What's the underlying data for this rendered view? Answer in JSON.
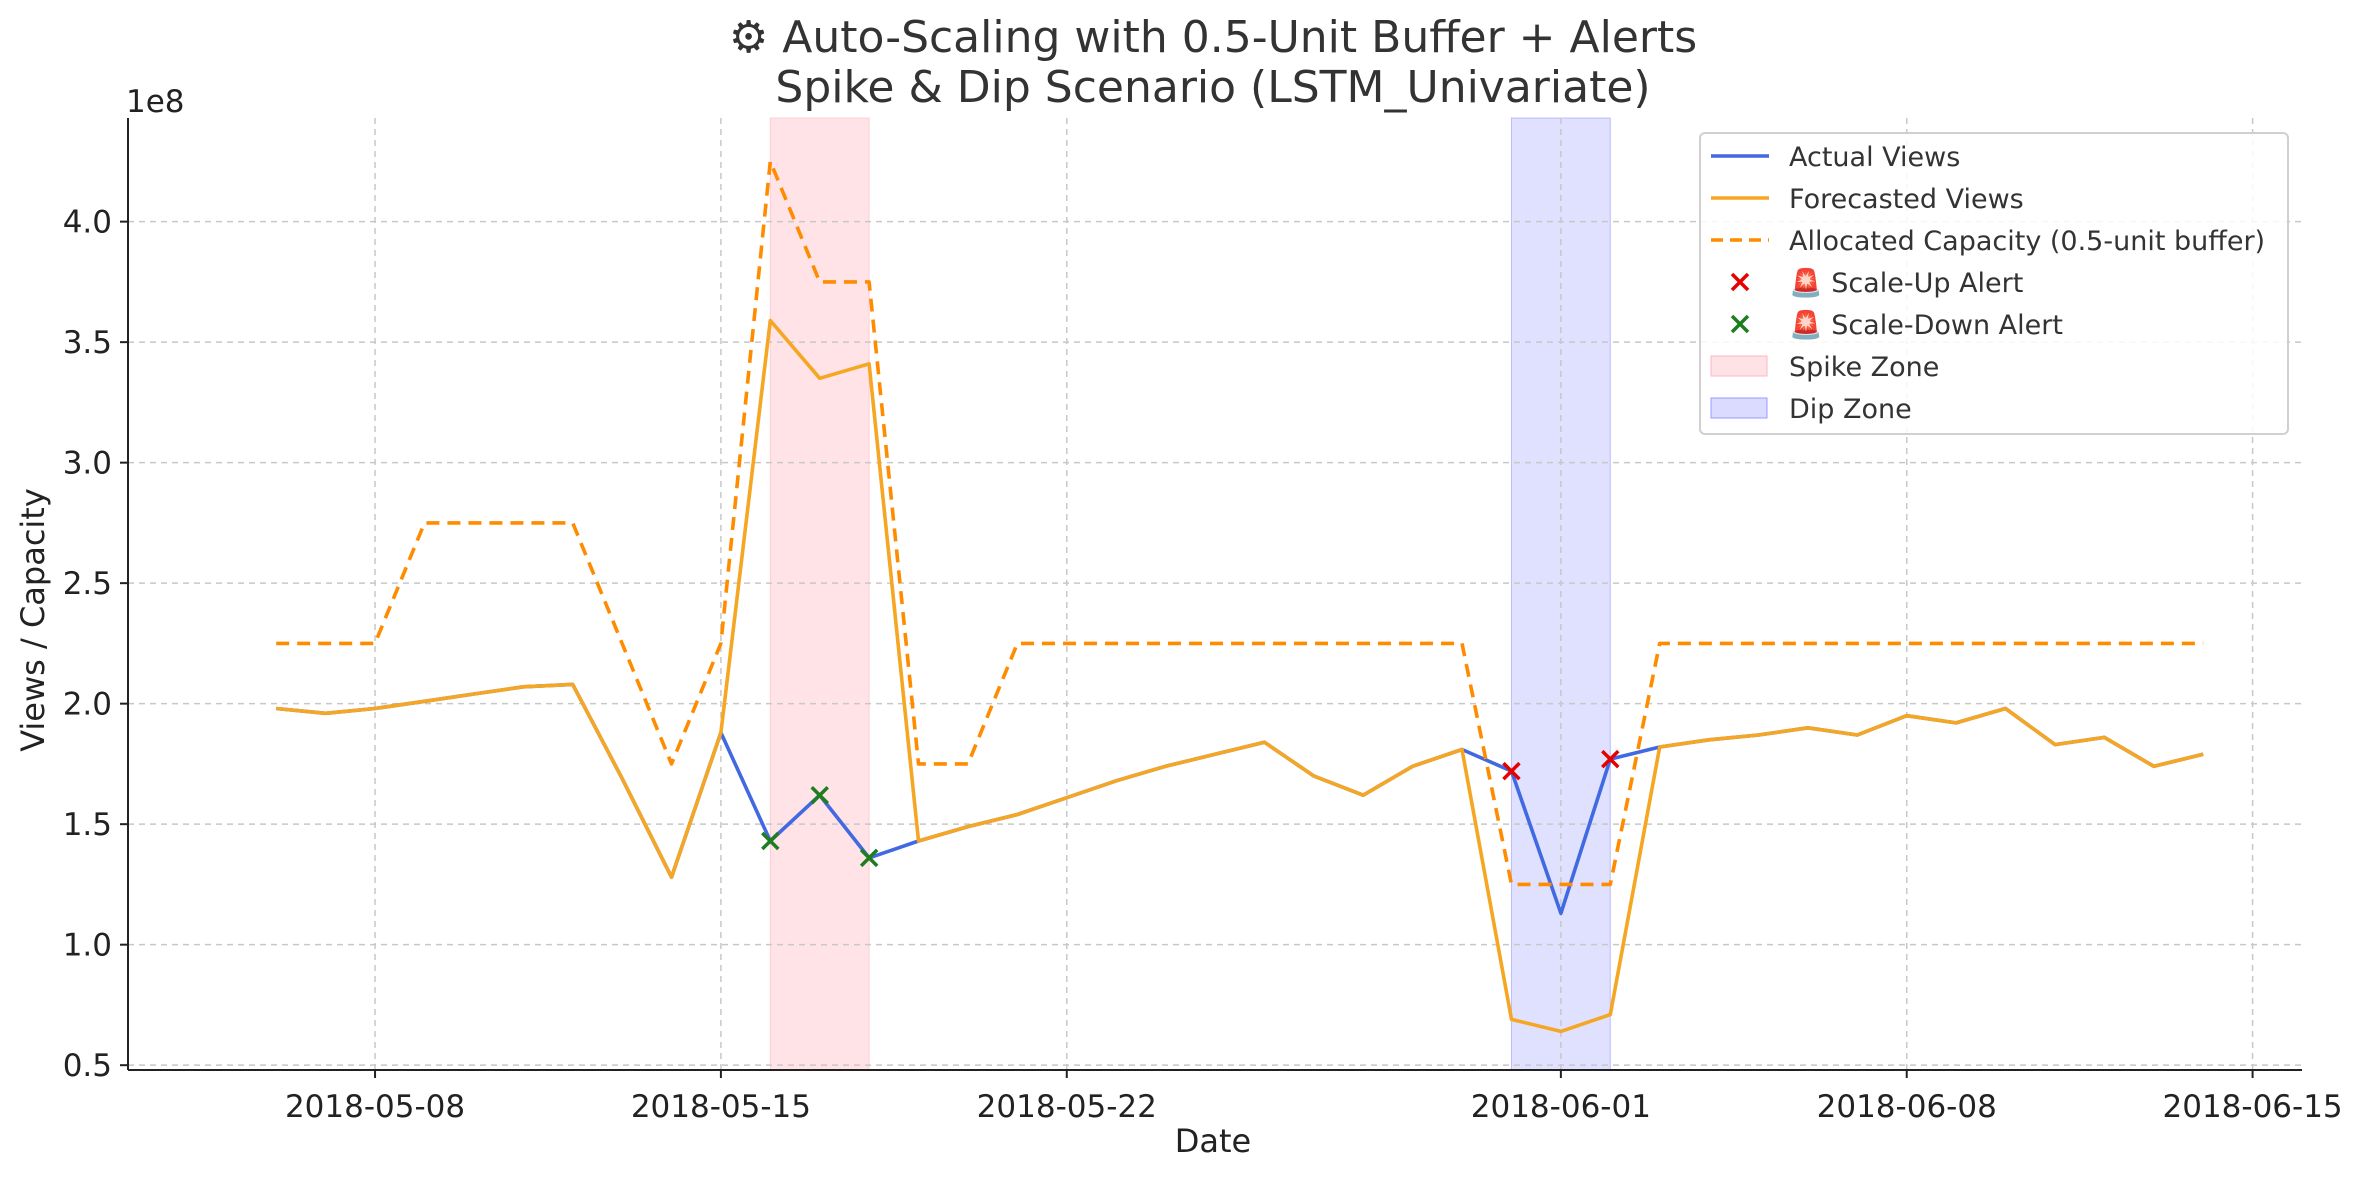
{
  "chart_data": {
    "type": "line",
    "title_line1": "⚙ Auto-Scaling with 0.5-Unit Buffer + Alerts",
    "title_line2": "Spike & Dip Scenario (LSTM_Univariate)",
    "xlabel": "Date",
    "ylabel": "Views / Capacity",
    "y_multiplier": "1e8",
    "xlim": [
      "2018-05-03",
      "2018-06-16"
    ],
    "ylim": [
      0.48,
      4.43
    ],
    "x_ticks": [
      "2018-05-08",
      "2018-05-15",
      "2018-05-22",
      "2018-06-01",
      "2018-06-08",
      "2018-06-15"
    ],
    "y_ticks": [
      "0.5",
      "1.0",
      "1.5",
      "2.0",
      "2.5",
      "3.0",
      "3.5",
      "4.0"
    ],
    "grid": true,
    "legend_position": "top-right",
    "colors": {
      "actual": "#4169e1",
      "forecast": "#f5a623",
      "capacity": "#ff8c00",
      "scale_up": "#e60000",
      "scale_down": "#1e7d1e",
      "spike_zone": "#ffb6c1",
      "dip_zone": "#9999ff"
    },
    "dates": [
      "2018-05-06",
      "2018-05-07",
      "2018-05-08",
      "2018-05-09",
      "2018-05-10",
      "2018-05-11",
      "2018-05-12",
      "2018-05-13",
      "2018-05-14",
      "2018-05-15",
      "2018-05-16",
      "2018-05-17",
      "2018-05-18",
      "2018-05-19",
      "2018-05-20",
      "2018-05-21",
      "2018-05-22",
      "2018-05-23",
      "2018-05-24",
      "2018-05-25",
      "2018-05-26",
      "2018-05-27",
      "2018-05-28",
      "2018-05-29",
      "2018-05-30",
      "2018-05-31",
      "2018-06-01",
      "2018-06-02",
      "2018-06-03",
      "2018-06-04",
      "2018-06-05",
      "2018-06-06",
      "2018-06-07",
      "2018-06-08",
      "2018-06-09",
      "2018-06-10",
      "2018-06-11",
      "2018-06-12",
      "2018-06-13",
      "2018-06-14"
    ],
    "series": [
      {
        "key": "actual",
        "name": "Actual Views",
        "style": "solid",
        "values": [
          1.98,
          1.96,
          1.98,
          2.01,
          2.04,
          2.07,
          2.08,
          1.69,
          1.28,
          1.88,
          1.43,
          1.62,
          1.36,
          1.43,
          1.49,
          1.54,
          1.61,
          1.68,
          1.74,
          1.79,
          1.84,
          1.7,
          1.62,
          1.74,
          1.81,
          1.72,
          1.13,
          1.77,
          1.82,
          1.85,
          1.87,
          1.9,
          1.87,
          1.95,
          1.92,
          1.98,
          1.83,
          1.86,
          1.74,
          1.79
        ]
      },
      {
        "key": "forecast",
        "name": "Forecasted Views",
        "style": "solid",
        "values": [
          1.98,
          1.96,
          1.98,
          2.01,
          2.04,
          2.07,
          2.08,
          1.69,
          1.28,
          1.88,
          3.59,
          3.35,
          3.41,
          1.43,
          1.49,
          1.54,
          1.61,
          1.68,
          1.74,
          1.79,
          1.84,
          1.7,
          1.62,
          1.74,
          1.81,
          0.69,
          0.64,
          0.71,
          1.82,
          1.85,
          1.87,
          1.9,
          1.87,
          1.95,
          1.92,
          1.98,
          1.83,
          1.86,
          1.74,
          1.79
        ]
      },
      {
        "key": "capacity",
        "name": "Allocated Capacity (0.5-unit buffer)",
        "style": "dashed",
        "values": [
          2.25,
          2.25,
          2.25,
          2.75,
          2.75,
          2.75,
          2.75,
          2.25,
          1.75,
          2.25,
          4.25,
          3.75,
          3.75,
          1.75,
          1.75,
          2.25,
          2.25,
          2.25,
          2.25,
          2.25,
          2.25,
          2.25,
          2.25,
          2.25,
          2.25,
          1.25,
          1.25,
          1.25,
          2.25,
          2.25,
          2.25,
          2.25,
          2.25,
          2.25,
          2.25,
          2.25,
          2.25,
          2.25,
          2.25,
          2.25
        ]
      }
    ],
    "alerts": {
      "scale_up": {
        "name": "🚨 Scale-Up Alert",
        "points": [
          {
            "x": "2018-05-31",
            "y": 1.72
          },
          {
            "x": "2018-06-02",
            "y": 1.77
          }
        ]
      },
      "scale_down": {
        "name": "🚨 Scale-Down Alert",
        "points": [
          {
            "x": "2018-05-16",
            "y": 1.43
          },
          {
            "x": "2018-05-17",
            "y": 1.62
          },
          {
            "x": "2018-05-18",
            "y": 1.36
          }
        ]
      }
    },
    "zones": [
      {
        "key": "spike",
        "name": "Spike Zone",
        "start": "2018-05-16",
        "end": "2018-05-18"
      },
      {
        "key": "dip",
        "name": "Dip Zone",
        "start": "2018-05-31",
        "end": "2018-06-02"
      }
    ]
  }
}
